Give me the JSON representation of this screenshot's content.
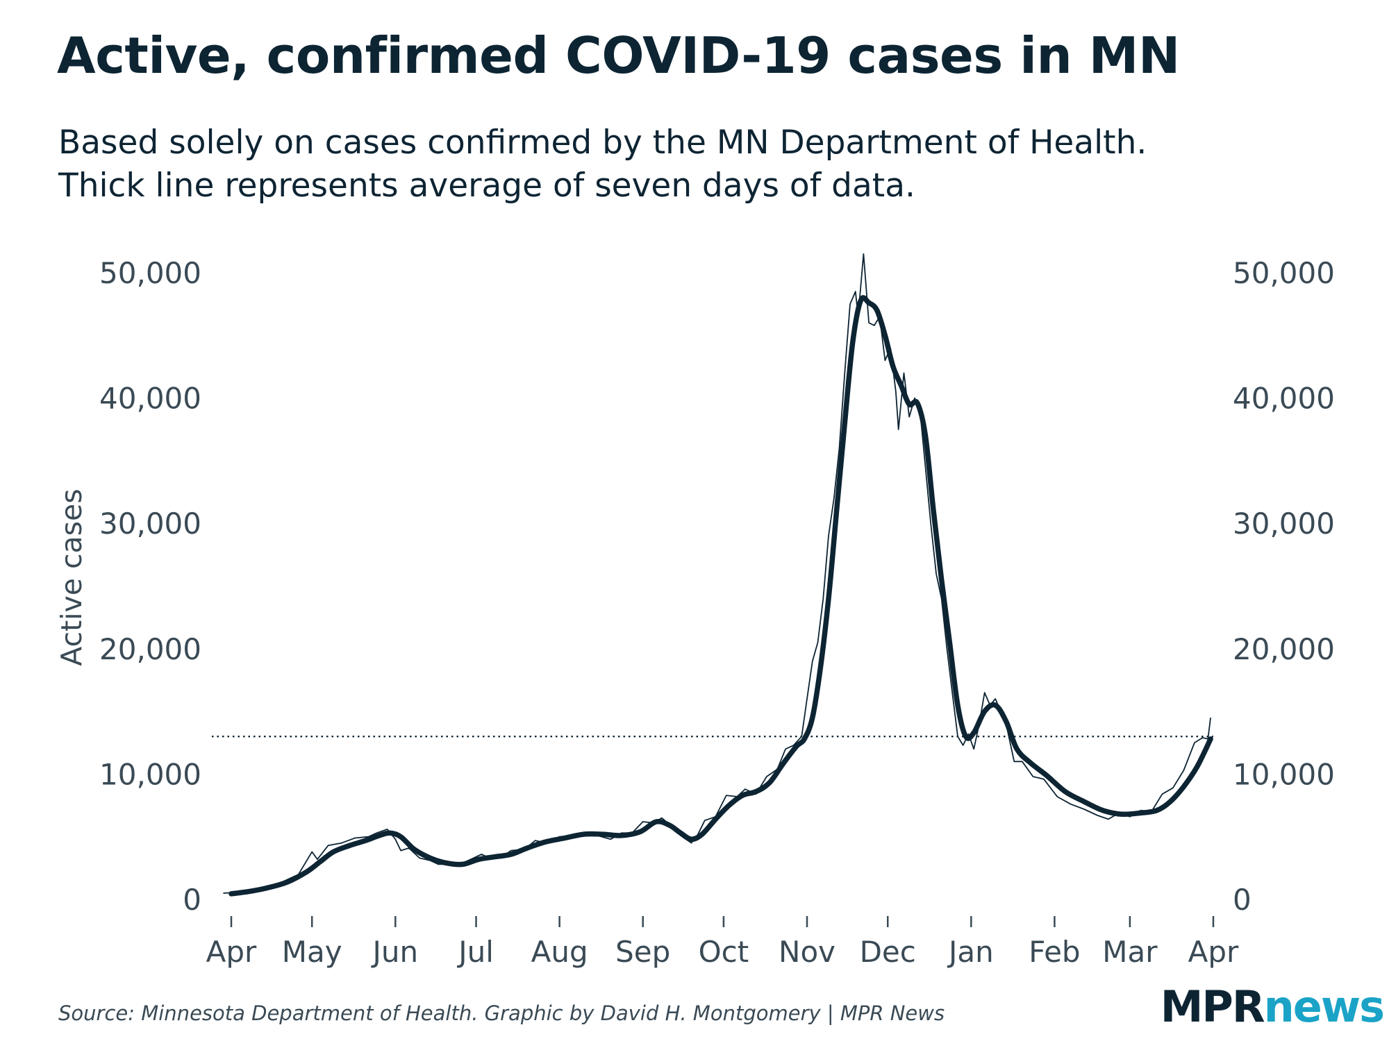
{
  "chart_data": {
    "type": "line",
    "title": "Active, confirmed COVID-19 cases in MN",
    "subtitle": [
      "Based solely on cases confirmed by the MN Department of Health.",
      "Thick line represents average of seven days of data."
    ],
    "ylabel": "Active cases",
    "xlabel": "",
    "ylim": [
      0,
      50000
    ],
    "y_ticks": [
      0,
      10000,
      20000,
      30000,
      40000,
      50000
    ],
    "y_tick_labels": [
      "0",
      "10,000",
      "20,000",
      "30,000",
      "40,000",
      "50,000"
    ],
    "x_range": [
      "2020-04-01",
      "2021-04-01"
    ],
    "x_ticks": [
      "2020-04-01",
      "2020-05-01",
      "2020-06-01",
      "2020-07-01",
      "2020-08-01",
      "2020-09-01",
      "2020-10-01",
      "2020-11-01",
      "2020-12-01",
      "2021-01-01",
      "2021-02-01",
      "2021-03-01",
      "2021-04-01"
    ],
    "x_tick_labels": [
      "Apr",
      "May",
      "Jun",
      "Jul",
      "Aug",
      "Sep",
      "Oct",
      "Nov",
      "Dec",
      "Jan",
      "Feb",
      "Mar",
      "Apr"
    ],
    "y_axis_both_sides": true,
    "grid": false,
    "reference_line": {
      "y": 13000,
      "style": "dotted"
    },
    "series": [
      {
        "role": "daily",
        "color": "#0d2433",
        "points": [
          [
            "2020-03-29",
            500
          ],
          [
            "2020-04-05",
            600
          ],
          [
            "2020-04-12",
            900
          ],
          [
            "2020-04-19",
            1300
          ],
          [
            "2020-04-26",
            2000
          ],
          [
            "2020-05-01",
            3800
          ],
          [
            "2020-05-03",
            3200
          ],
          [
            "2020-05-07",
            4300
          ],
          [
            "2020-05-12",
            4500
          ],
          [
            "2020-05-17",
            4900
          ],
          [
            "2020-05-22",
            5000
          ],
          [
            "2020-05-25",
            5300
          ],
          [
            "2020-05-29",
            5600
          ],
          [
            "2020-06-01",
            4800
          ],
          [
            "2020-06-03",
            3900
          ],
          [
            "2020-06-06",
            4100
          ],
          [
            "2020-06-10",
            3300
          ],
          [
            "2020-06-14",
            3100
          ],
          [
            "2020-06-17",
            2800
          ],
          [
            "2020-06-21",
            2800
          ],
          [
            "2020-06-26",
            2900
          ],
          [
            "2020-06-30",
            3300
          ],
          [
            "2020-07-03",
            3600
          ],
          [
            "2020-07-06",
            3300
          ],
          [
            "2020-07-10",
            3300
          ],
          [
            "2020-07-14",
            3900
          ],
          [
            "2020-07-19",
            4000
          ],
          [
            "2020-07-23",
            4700
          ],
          [
            "2020-07-27",
            4500
          ],
          [
            "2020-08-01",
            5000
          ],
          [
            "2020-08-06",
            5100
          ],
          [
            "2020-08-10",
            5300
          ],
          [
            "2020-08-15",
            5100
          ],
          [
            "2020-08-20",
            4800
          ],
          [
            "2020-08-24",
            5300
          ],
          [
            "2020-08-28",
            5300
          ],
          [
            "2020-09-01",
            6200
          ],
          [
            "2020-09-05",
            6100
          ],
          [
            "2020-09-08",
            6500
          ],
          [
            "2020-09-12",
            5800
          ],
          [
            "2020-09-15",
            5100
          ],
          [
            "2020-09-19",
            4500
          ],
          [
            "2020-09-21",
            5000
          ],
          [
            "2020-09-24",
            6300
          ],
          [
            "2020-09-28",
            6600
          ],
          [
            "2020-10-02",
            8300
          ],
          [
            "2020-10-06",
            8200
          ],
          [
            "2020-10-09",
            8800
          ],
          [
            "2020-10-13",
            8400
          ],
          [
            "2020-10-17",
            9800
          ],
          [
            "2020-10-21",
            10400
          ],
          [
            "2020-10-24",
            12000
          ],
          [
            "2020-10-27",
            12300
          ],
          [
            "2020-10-30",
            13000
          ],
          [
            "2020-11-01",
            16000
          ],
          [
            "2020-11-03",
            19000
          ],
          [
            "2020-11-05",
            20500
          ],
          [
            "2020-11-07",
            24000
          ],
          [
            "2020-11-09",
            29000
          ],
          [
            "2020-11-11",
            32000
          ],
          [
            "2020-11-13",
            36000
          ],
          [
            "2020-11-15",
            42000
          ],
          [
            "2020-11-17",
            47500
          ],
          [
            "2020-11-19",
            48500
          ],
          [
            "2020-11-20",
            46500
          ],
          [
            "2020-11-22",
            51500
          ],
          [
            "2020-11-24",
            46000
          ],
          [
            "2020-11-26",
            45800
          ],
          [
            "2020-11-28",
            46500
          ],
          [
            "2020-11-30",
            43000
          ],
          [
            "2020-12-02",
            44000
          ],
          [
            "2020-12-04",
            40500
          ],
          [
            "2020-12-05",
            37500
          ],
          [
            "2020-12-07",
            42000
          ],
          [
            "2020-12-09",
            38500
          ],
          [
            "2020-12-11",
            40000
          ],
          [
            "2020-12-13",
            39000
          ],
          [
            "2020-12-15",
            34500
          ],
          [
            "2020-12-17",
            30000
          ],
          [
            "2020-12-19",
            26000
          ],
          [
            "2020-12-21",
            24000
          ],
          [
            "2020-12-23",
            20000
          ],
          [
            "2020-12-25",
            16500
          ],
          [
            "2020-12-27",
            13000
          ],
          [
            "2020-12-29",
            12300
          ],
          [
            "2020-12-31",
            13200
          ],
          [
            "2021-01-02",
            12000
          ],
          [
            "2021-01-04",
            14000
          ],
          [
            "2021-01-06",
            16500
          ],
          [
            "2021-01-08",
            15500
          ],
          [
            "2021-01-10",
            16000
          ],
          [
            "2021-01-12",
            15000
          ],
          [
            "2021-01-14",
            14000
          ],
          [
            "2021-01-17",
            11000
          ],
          [
            "2021-01-20",
            11000
          ],
          [
            "2021-01-24",
            9800
          ],
          [
            "2021-01-28",
            9600
          ],
          [
            "2021-02-02",
            8200
          ],
          [
            "2021-02-07",
            7600
          ],
          [
            "2021-02-12",
            7200
          ],
          [
            "2021-02-17",
            6700
          ],
          [
            "2021-02-21",
            6400
          ],
          [
            "2021-02-25",
            6900
          ],
          [
            "2021-03-01",
            6600
          ],
          [
            "2021-03-05",
            7100
          ],
          [
            "2021-03-09",
            7000
          ],
          [
            "2021-03-13",
            8400
          ],
          [
            "2021-03-17",
            8900
          ],
          [
            "2021-03-21",
            10300
          ],
          [
            "2021-03-25",
            12500
          ],
          [
            "2021-03-28",
            12900
          ],
          [
            "2021-03-30",
            12800
          ],
          [
            "2021-03-31",
            14500
          ]
        ]
      },
      {
        "role": "7-day average",
        "color": "#0d2433",
        "points": [
          [
            "2020-04-01",
            450
          ],
          [
            "2020-04-08",
            650
          ],
          [
            "2020-04-15",
            950
          ],
          [
            "2020-04-22",
            1400
          ],
          [
            "2020-04-29",
            2200
          ],
          [
            "2020-05-04",
            3000
          ],
          [
            "2020-05-09",
            3800
          ],
          [
            "2020-05-15",
            4300
          ],
          [
            "2020-05-21",
            4700
          ],
          [
            "2020-05-26",
            5100
          ],
          [
            "2020-05-30",
            5300
          ],
          [
            "2020-06-03",
            5000
          ],
          [
            "2020-06-08",
            4000
          ],
          [
            "2020-06-14",
            3300
          ],
          [
            "2020-06-20",
            2900
          ],
          [
            "2020-06-26",
            2800
          ],
          [
            "2020-07-02",
            3200
          ],
          [
            "2020-07-08",
            3400
          ],
          [
            "2020-07-14",
            3600
          ],
          [
            "2020-07-20",
            4100
          ],
          [
            "2020-07-27",
            4600
          ],
          [
            "2020-08-03",
            4900
          ],
          [
            "2020-08-10",
            5200
          ],
          [
            "2020-08-17",
            5200
          ],
          [
            "2020-08-24",
            5100
          ],
          [
            "2020-08-31",
            5400
          ],
          [
            "2020-09-06",
            6200
          ],
          [
            "2020-09-11",
            5900
          ],
          [
            "2020-09-15",
            5300
          ],
          [
            "2020-09-19",
            4800
          ],
          [
            "2020-09-23",
            5200
          ],
          [
            "2020-09-28",
            6400
          ],
          [
            "2020-10-03",
            7500
          ],
          [
            "2020-10-08",
            8300
          ],
          [
            "2020-10-13",
            8600
          ],
          [
            "2020-10-18",
            9300
          ],
          [
            "2020-10-23",
            10800
          ],
          [
            "2020-10-28",
            12200
          ],
          [
            "2020-10-31",
            12800
          ],
          [
            "2020-11-03",
            14500
          ],
          [
            "2020-11-06",
            18500
          ],
          [
            "2020-11-09",
            24000
          ],
          [
            "2020-11-12",
            31000
          ],
          [
            "2020-11-15",
            38000
          ],
          [
            "2020-11-18",
            44500
          ],
          [
            "2020-11-21",
            47800
          ],
          [
            "2020-11-24",
            47600
          ],
          [
            "2020-11-27",
            47000
          ],
          [
            "2020-11-30",
            45000
          ],
          [
            "2020-12-03",
            42500
          ],
          [
            "2020-12-06",
            41000
          ],
          [
            "2020-12-09",
            39500
          ],
          [
            "2020-12-12",
            39600
          ],
          [
            "2020-12-15",
            37000
          ],
          [
            "2020-12-18",
            31000
          ],
          [
            "2020-12-21",
            25500
          ],
          [
            "2020-12-24",
            20500
          ],
          [
            "2020-12-27",
            15500
          ],
          [
            "2020-12-30",
            13000
          ],
          [
            "2021-01-02",
            13300
          ],
          [
            "2021-01-06",
            15000
          ],
          [
            "2021-01-10",
            15500
          ],
          [
            "2021-01-14",
            14200
          ],
          [
            "2021-01-18",
            12000
          ],
          [
            "2021-01-23",
            10900
          ],
          [
            "2021-01-29",
            9900
          ],
          [
            "2021-02-05",
            8600
          ],
          [
            "2021-02-12",
            7800
          ],
          [
            "2021-02-19",
            7100
          ],
          [
            "2021-02-26",
            6800
          ],
          [
            "2021-03-05",
            6900
          ],
          [
            "2021-03-11",
            7100
          ],
          [
            "2021-03-16",
            7800
          ],
          [
            "2021-03-21",
            9000
          ],
          [
            "2021-03-26",
            10600
          ],
          [
            "2021-03-31",
            12800
          ]
        ]
      }
    ]
  },
  "source": "Source: Minnesota Department of Health. Graphic by David H. Montgomery | MPR News",
  "brand": {
    "part1": "MPR",
    "part2": "news"
  }
}
